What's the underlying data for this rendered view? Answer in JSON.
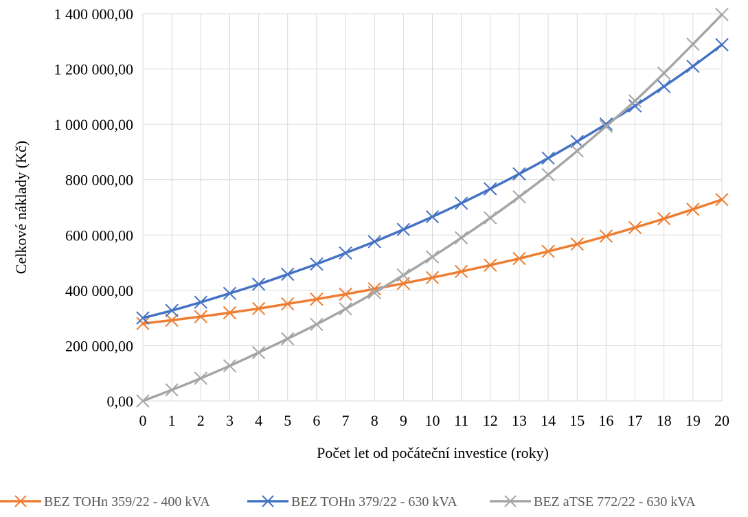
{
  "chart_data": {
    "type": "line",
    "title": "",
    "xlabel": "Počet let od počáteční investice (roky)",
    "ylabel": "Celkové náklady (Kč)",
    "x": [
      0,
      1,
      2,
      3,
      4,
      5,
      6,
      7,
      8,
      9,
      10,
      11,
      12,
      13,
      14,
      15,
      16,
      17,
      18,
      19,
      20
    ],
    "xlim": [
      0,
      20
    ],
    "ylim": [
      0,
      1400000
    ],
    "y_ticks": [
      0,
      200000,
      400000,
      600000,
      800000,
      1000000,
      1200000,
      1400000
    ],
    "y_tick_labels": [
      "0,00",
      "200 000,00",
      "400 000,00",
      "600 000,00",
      "800 000,00",
      "1 000 000,00",
      "1 200 000,00",
      "1 400 000,00"
    ],
    "x_tick_labels": [
      "0",
      "1",
      "2",
      "3",
      "4",
      "5",
      "6",
      "7",
      "8",
      "9",
      "10",
      "11",
      "12",
      "13",
      "14",
      "15",
      "16",
      "17",
      "18",
      "19",
      "20"
    ],
    "grid": true,
    "legend_position": "bottom",
    "marker": "x",
    "series": [
      {
        "name": "BEZ TOHn 359/22 - 400 kVA",
        "color": "#ED7D31",
        "values": [
          280000,
          292000,
          305000,
          319000,
          334000,
          351000,
          368000,
          386000,
          405000,
          425000,
          446000,
          468000,
          491000,
          515000,
          541000,
          567000,
          596000,
          627000,
          659000,
          693000,
          728000
        ]
      },
      {
        "name": "BEZ TOHn 379/22 - 630 kVA",
        "color": "#4472C4",
        "values": [
          300000,
          327000,
          357000,
          389000,
          422000,
          458000,
          495000,
          535000,
          576000,
          620000,
          666000,
          715000,
          767000,
          821000,
          878000,
          938000,
          1001000,
          1067000,
          1137000,
          1210000,
          1288000
        ]
      },
      {
        "name": "BEZ aTSE 772/22 - 630 kVA",
        "color": "#A5A5A5",
        "values": [
          0,
          40000,
          82000,
          127000,
          175000,
          225000,
          277000,
          333000,
          392000,
          455000,
          521000,
          590000,
          662000,
          738000,
          818000,
          904000,
          993000,
          1085000,
          1185000,
          1290000,
          1397000
        ]
      }
    ]
  }
}
